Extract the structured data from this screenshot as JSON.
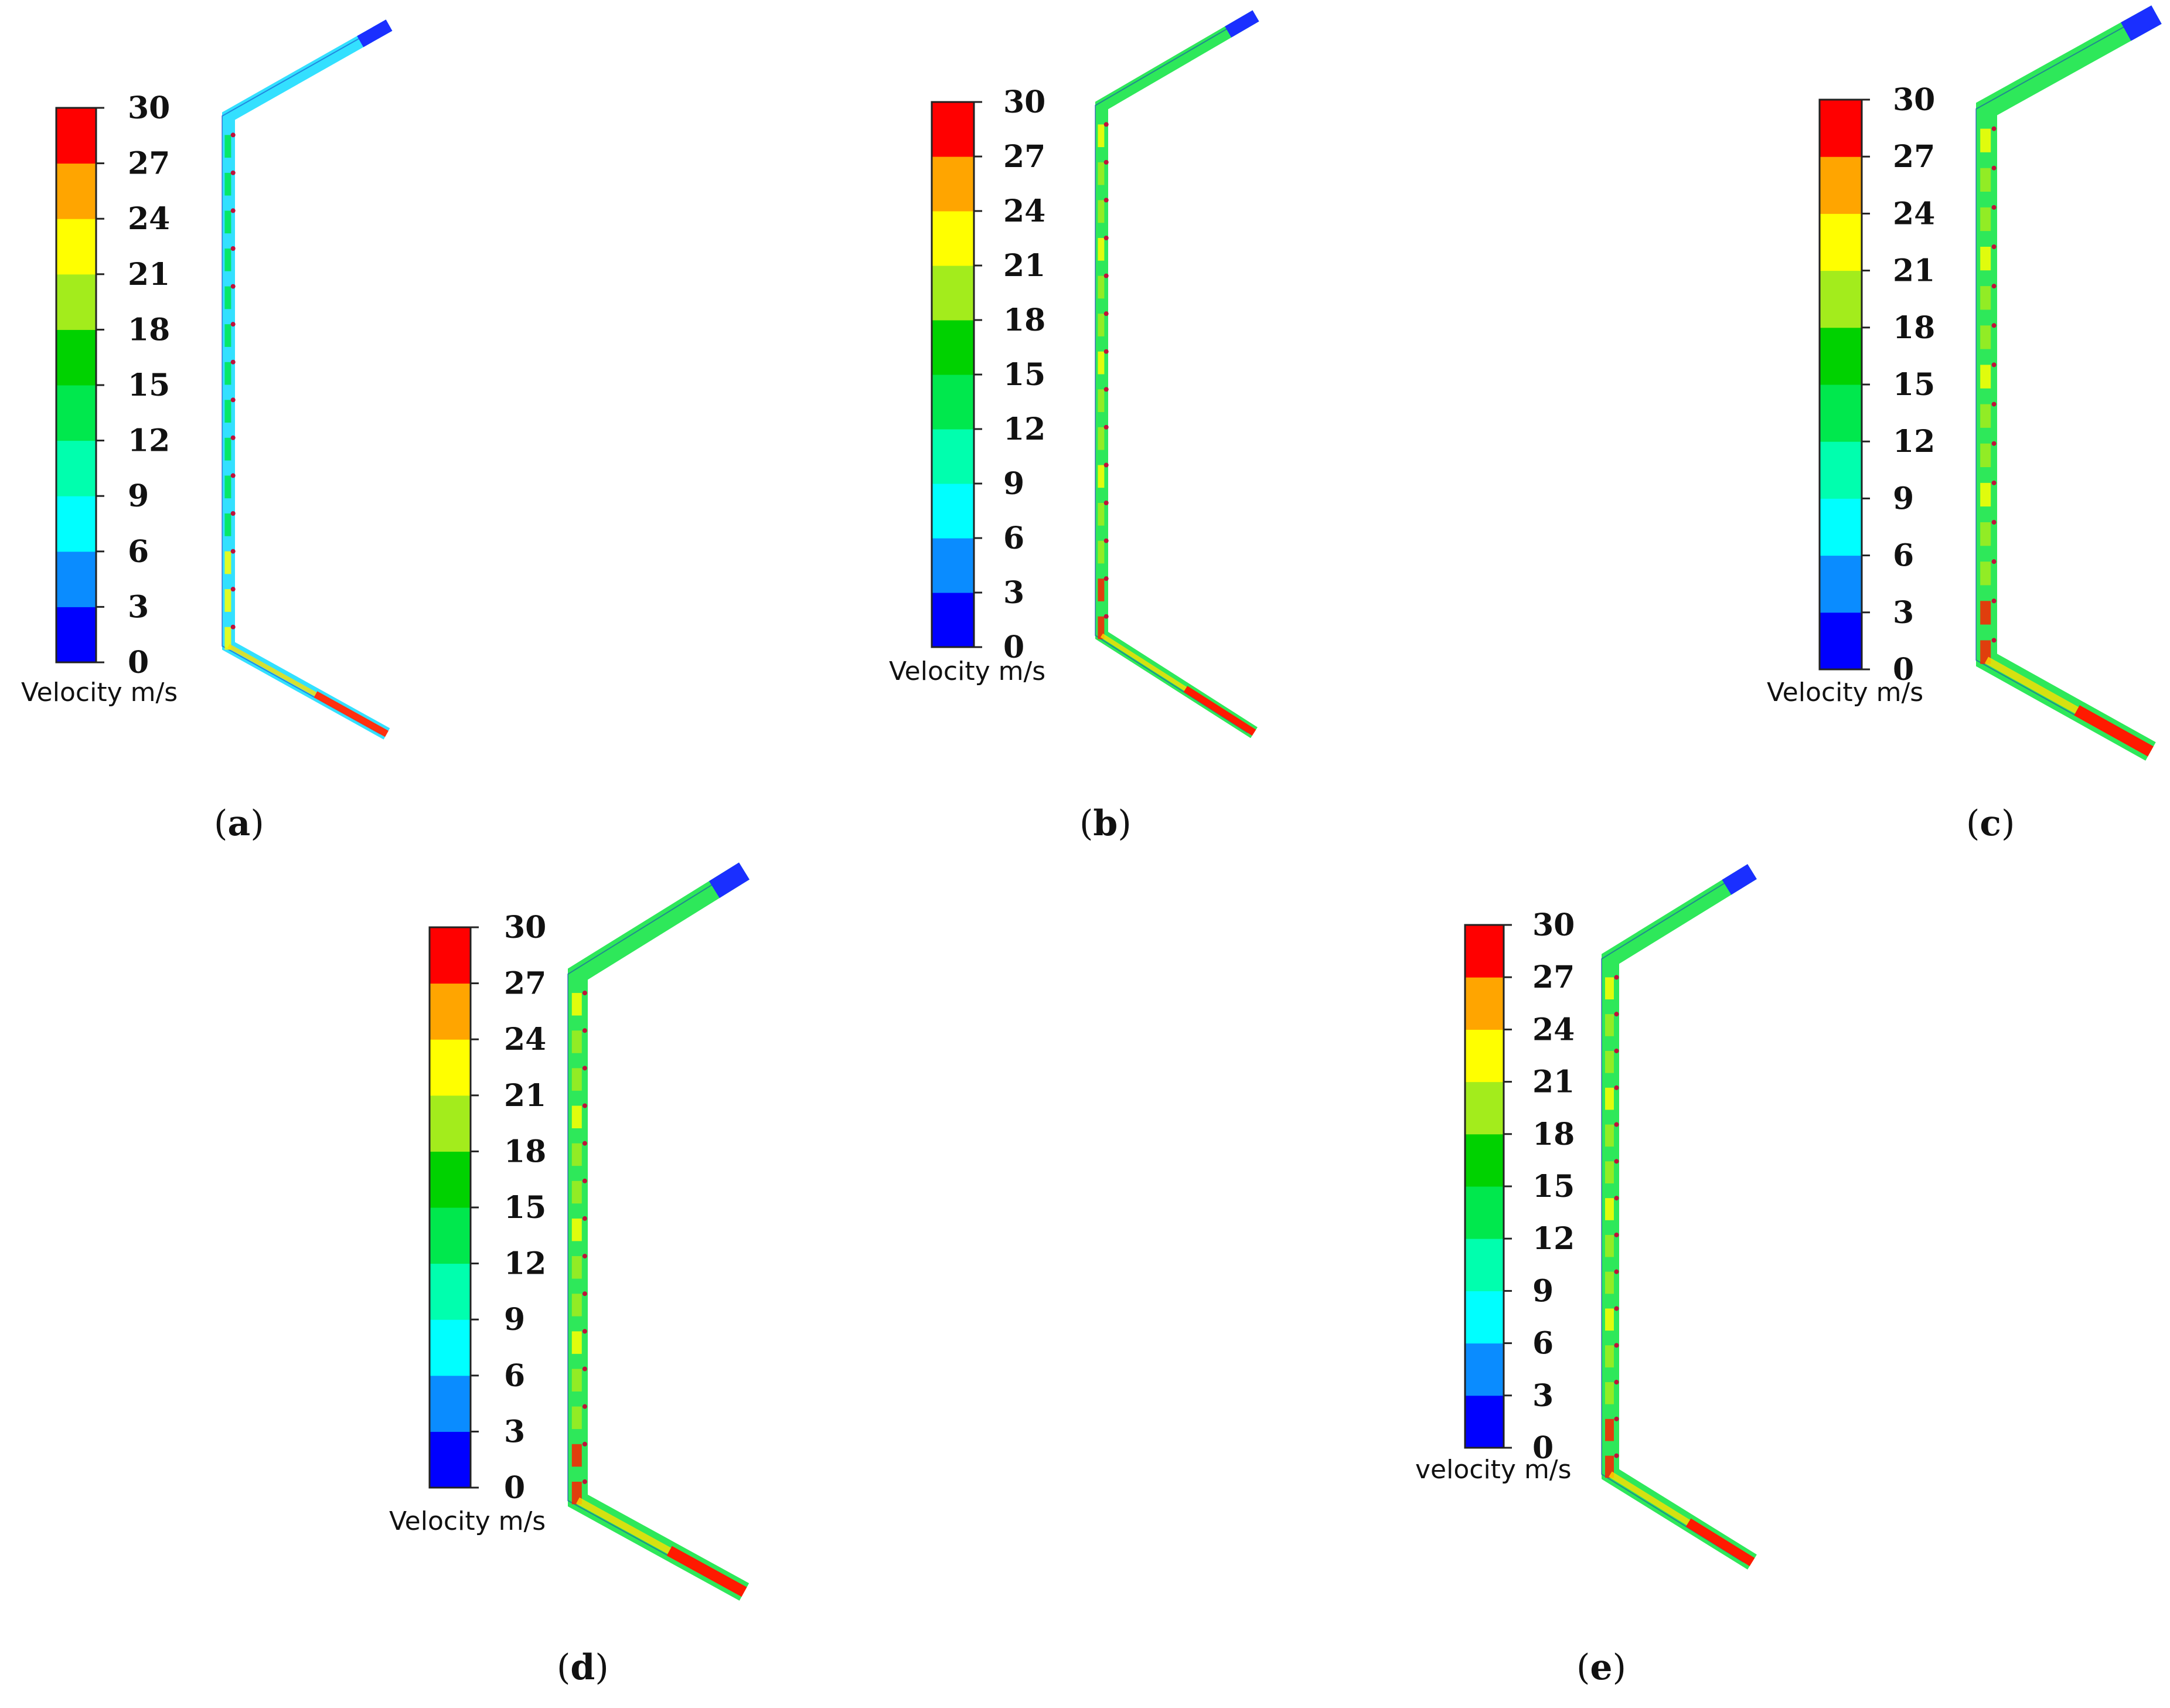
{
  "figure": {
    "colors": [
      "#0000ff",
      "#0a8cff",
      "#00ffff",
      "#00ffae",
      "#00e84d",
      "#00d200",
      "#a3ec1c",
      "#ffff00",
      "#ffa500",
      "#ff0000"
    ],
    "panels": [
      {
        "id": "a",
        "caption_open": "(",
        "caption_letter": "a",
        "caption_close": ")",
        "legend_title": "Velocity m/s",
        "ticks": [
          "30",
          "27",
          "24",
          "21",
          "18",
          "15",
          "12",
          "9",
          "6",
          "3",
          "0"
        ],
        "flow_level": "low"
      },
      {
        "id": "b",
        "caption_open": "(",
        "caption_letter": "b",
        "caption_close": ")",
        "legend_title": "Velocity m/s",
        "ticks": [
          "30",
          "27",
          "24",
          "21",
          "18",
          "15",
          "12",
          "9",
          "6",
          "3",
          "0"
        ],
        "flow_level": "medium"
      },
      {
        "id": "c",
        "caption_open": "(",
        "caption_letter": "c",
        "caption_close": ")",
        "legend_title": "Velocity m/s",
        "ticks": [
          "30",
          "27",
          "24",
          "21",
          "18",
          "15",
          "12",
          "9",
          "6",
          "3",
          "0"
        ],
        "flow_level": "high"
      },
      {
        "id": "d",
        "caption_open": "(",
        "caption_letter": "d",
        "caption_close": ")",
        "legend_title": "Velocity m/s",
        "ticks": [
          "30",
          "27",
          "24",
          "21",
          "18",
          "15",
          "12",
          "9",
          "6",
          "3",
          "0"
        ],
        "flow_level": "high"
      },
      {
        "id": "e",
        "caption_open": "(",
        "caption_letter": "e",
        "caption_close": ")",
        "legend_title": "velocity m/s",
        "ticks": [
          "30",
          "27",
          "24",
          "21",
          "18",
          "15",
          "12",
          "9",
          "6",
          "3",
          "0"
        ],
        "flow_level": "high"
      }
    ]
  }
}
